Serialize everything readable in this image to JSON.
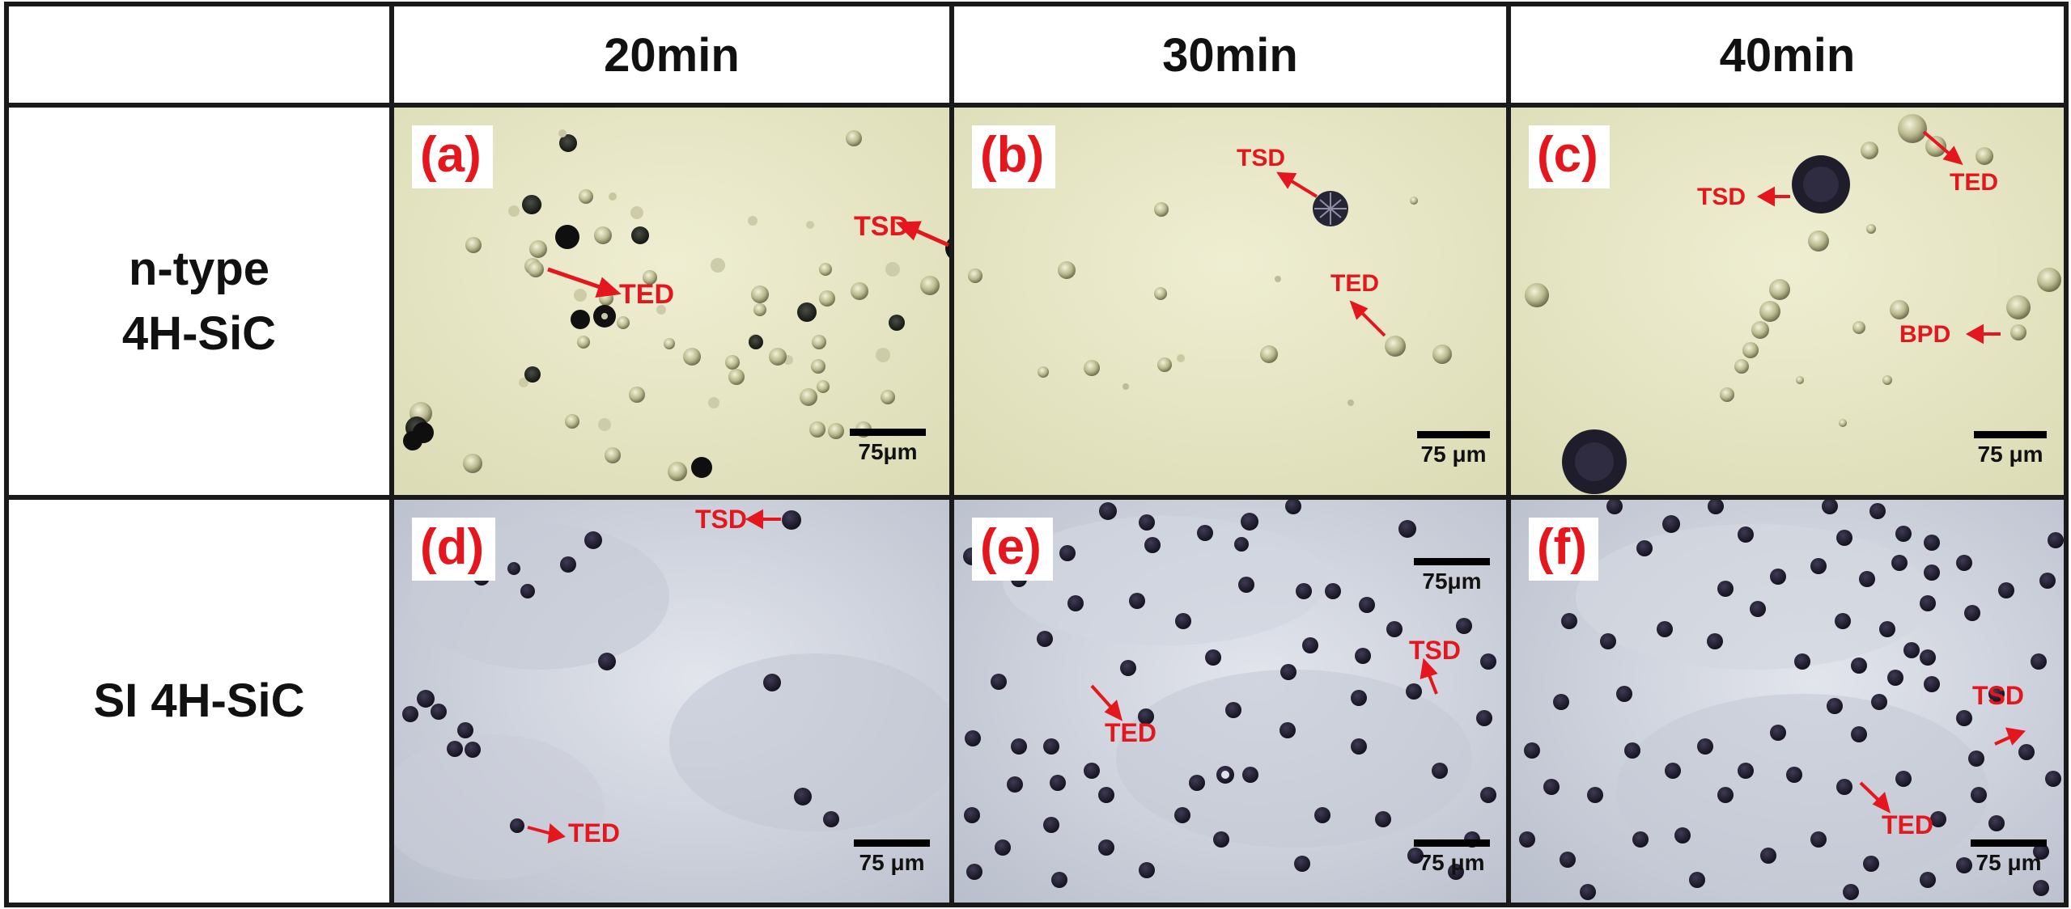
{
  "columns": [
    "20min",
    "30min",
    "40min"
  ],
  "rows": [
    {
      "line1": "n-type",
      "line2": "4H-SiC"
    },
    {
      "line1": "SI 4H-SiC",
      "line2": ""
    }
  ],
  "panels": {
    "a": {
      "letter": "(a)",
      "scale": "75μm",
      "labels": [
        "TSD",
        "TED"
      ]
    },
    "b": {
      "letter": "(b)",
      "scale": "75 μm",
      "labels": [
        "TSD",
        "TED"
      ]
    },
    "c": {
      "letter": "(c)",
      "scale": "75 μm",
      "labels": [
        "TED",
        "TSD",
        "BPD"
      ]
    },
    "d": {
      "letter": "(d)",
      "scale": "75 μm",
      "labels": [
        "TSD",
        "TED"
      ]
    },
    "e": {
      "letter": "(e)",
      "scale_top": "75μm",
      "scale": "75 μm",
      "labels": [
        "TSD",
        "TED"
      ]
    },
    "f": {
      "letter": "(f)",
      "scale": "75 μm",
      "labels": [
        "TSD",
        "TED"
      ]
    }
  },
  "colors": {
    "label_red": "#e3171d",
    "ntype_background": "#e9e8c8",
    "si_background": "#cfd4df",
    "etch_pit": "#1c1830"
  }
}
